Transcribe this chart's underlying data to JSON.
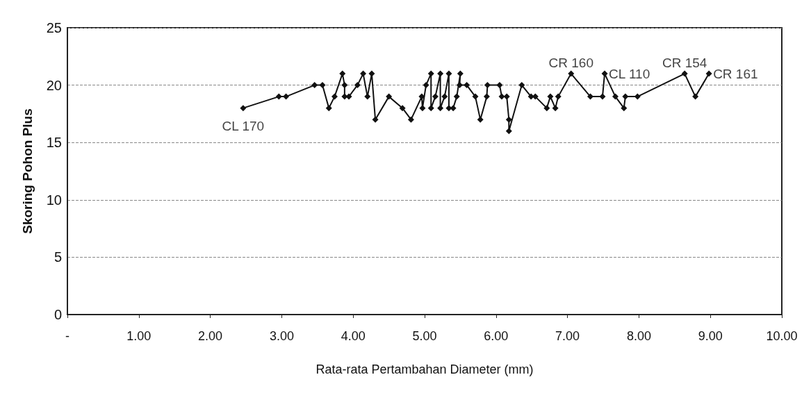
{
  "chart_data": {
    "type": "line",
    "xlabel": "Rata-rata Pertambahan Diameter (mm)",
    "ylabel": "Skoring Pohon Plus",
    "x": [
      2.46,
      2.96,
      3.06,
      3.46,
      3.57,
      3.66,
      3.74,
      3.85,
      3.88,
      3.88,
      3.94,
      4.06,
      4.14,
      4.2,
      4.26,
      4.31,
      4.5,
      4.69,
      4.81,
      4.96,
      4.97,
      5.02,
      5.09,
      5.09,
      5.15,
      5.22,
      5.22,
      5.28,
      5.34,
      5.34,
      5.4,
      5.45,
      5.5,
      5.49,
      5.59,
      5.71,
      5.78,
      5.87,
      5.88,
      6.05,
      6.08,
      6.15,
      6.18,
      6.18,
      6.36,
      6.49,
      6.55,
      6.71,
      6.76,
      6.83,
      6.87,
      7.05,
      7.32,
      7.49,
      7.52,
      7.67,
      7.79,
      7.81,
      7.98,
      8.64,
      8.79,
      8.98
    ],
    "series": [
      {
        "color": "#111111",
        "values": [
          18,
          19,
          19,
          20,
          20,
          18,
          19,
          21,
          20,
          19,
          19,
          20,
          21,
          19,
          21,
          17,
          19,
          18,
          17,
          19,
          18,
          20,
          21,
          18,
          19,
          21,
          18,
          19,
          21,
          18,
          18,
          19,
          21,
          20,
          20,
          19,
          17,
          19,
          20,
          20,
          19,
          19,
          17,
          16,
          20,
          19,
          19,
          18,
          19,
          18,
          19,
          21,
          19,
          19,
          21,
          19,
          18,
          19,
          19,
          21,
          19,
          21
        ]
      }
    ],
    "marker": "diamond",
    "line_style": "solid",
    "grid": "y",
    "xlim": [
      0,
      10
    ],
    "xticks": [
      {
        "value": 0,
        "label": "-"
      },
      {
        "value": 1,
        "label": "1.00"
      },
      {
        "value": 2,
        "label": "2.00"
      },
      {
        "value": 3,
        "label": "3.00"
      },
      {
        "value": 4,
        "label": "4.00"
      },
      {
        "value": 5,
        "label": "5.00"
      },
      {
        "value": 6,
        "label": "6.00"
      },
      {
        "value": 7,
        "label": "7.00"
      },
      {
        "value": 8,
        "label": "8.00"
      },
      {
        "value": 9,
        "label": "9.00"
      },
      {
        "value": 10,
        "label": "10.00"
      }
    ],
    "ylim": [
      0,
      25
    ],
    "yticks": [
      0,
      5,
      10,
      15,
      20,
      25
    ],
    "annotations": [
      {
        "text": "CL 170",
        "x": 2.46,
        "y": 18
      },
      {
        "text": "CR 160",
        "x": 7.05,
        "y": 21
      },
      {
        "text": "CL 110",
        "x": 7.52,
        "y": 21
      },
      {
        "text": "CR 154",
        "x": 8.64,
        "y": 21
      },
      {
        "text": "CR 161",
        "x": 8.98,
        "y": 21
      }
    ]
  }
}
